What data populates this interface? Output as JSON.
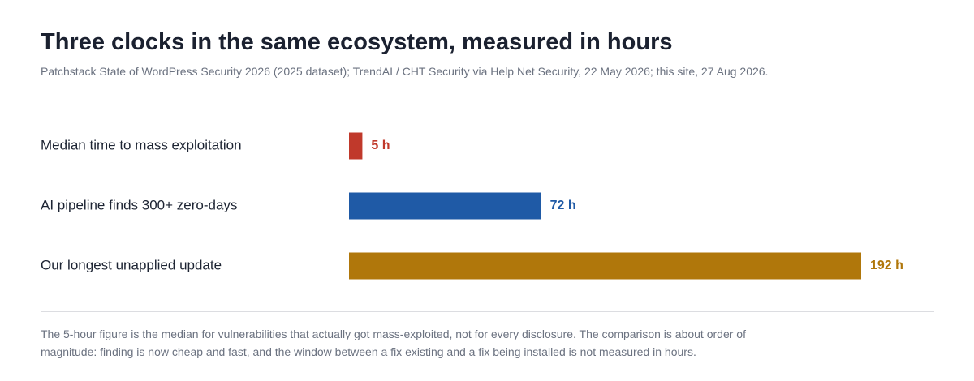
{
  "header": {
    "title": "Three clocks in the same ecosystem, measured in hours",
    "subtitle": "Patchstack State of WordPress Security 2026 (2025 dataset); TrendAI / CHT Security via Help Net Security, 22 May 2026; this site, 27 Aug 2026."
  },
  "chart_data": {
    "type": "bar",
    "orientation": "horizontal",
    "unit": "h",
    "categories": [
      "Median time to mass exploitation",
      "AI pipeline finds 300+ zero-days",
      "Our longest unapplied update"
    ],
    "values": [
      5,
      72,
      192
    ],
    "value_labels": [
      "5 h",
      "72 h",
      "192 h"
    ],
    "colors": [
      "#c0392b",
      "#1f5aa6",
      "#b0770b"
    ],
    "xlim": [
      0,
      192
    ],
    "grid": false,
    "legend": "none"
  },
  "footer": {
    "note": "The 5-hour figure is the median for vulnerabilities that actually got mass-exploited, not for every disclosure. The comparison is about order of magnitude: finding is now cheap and fast, and the window between a fix existing and a fix being installed is not measured in hours."
  }
}
